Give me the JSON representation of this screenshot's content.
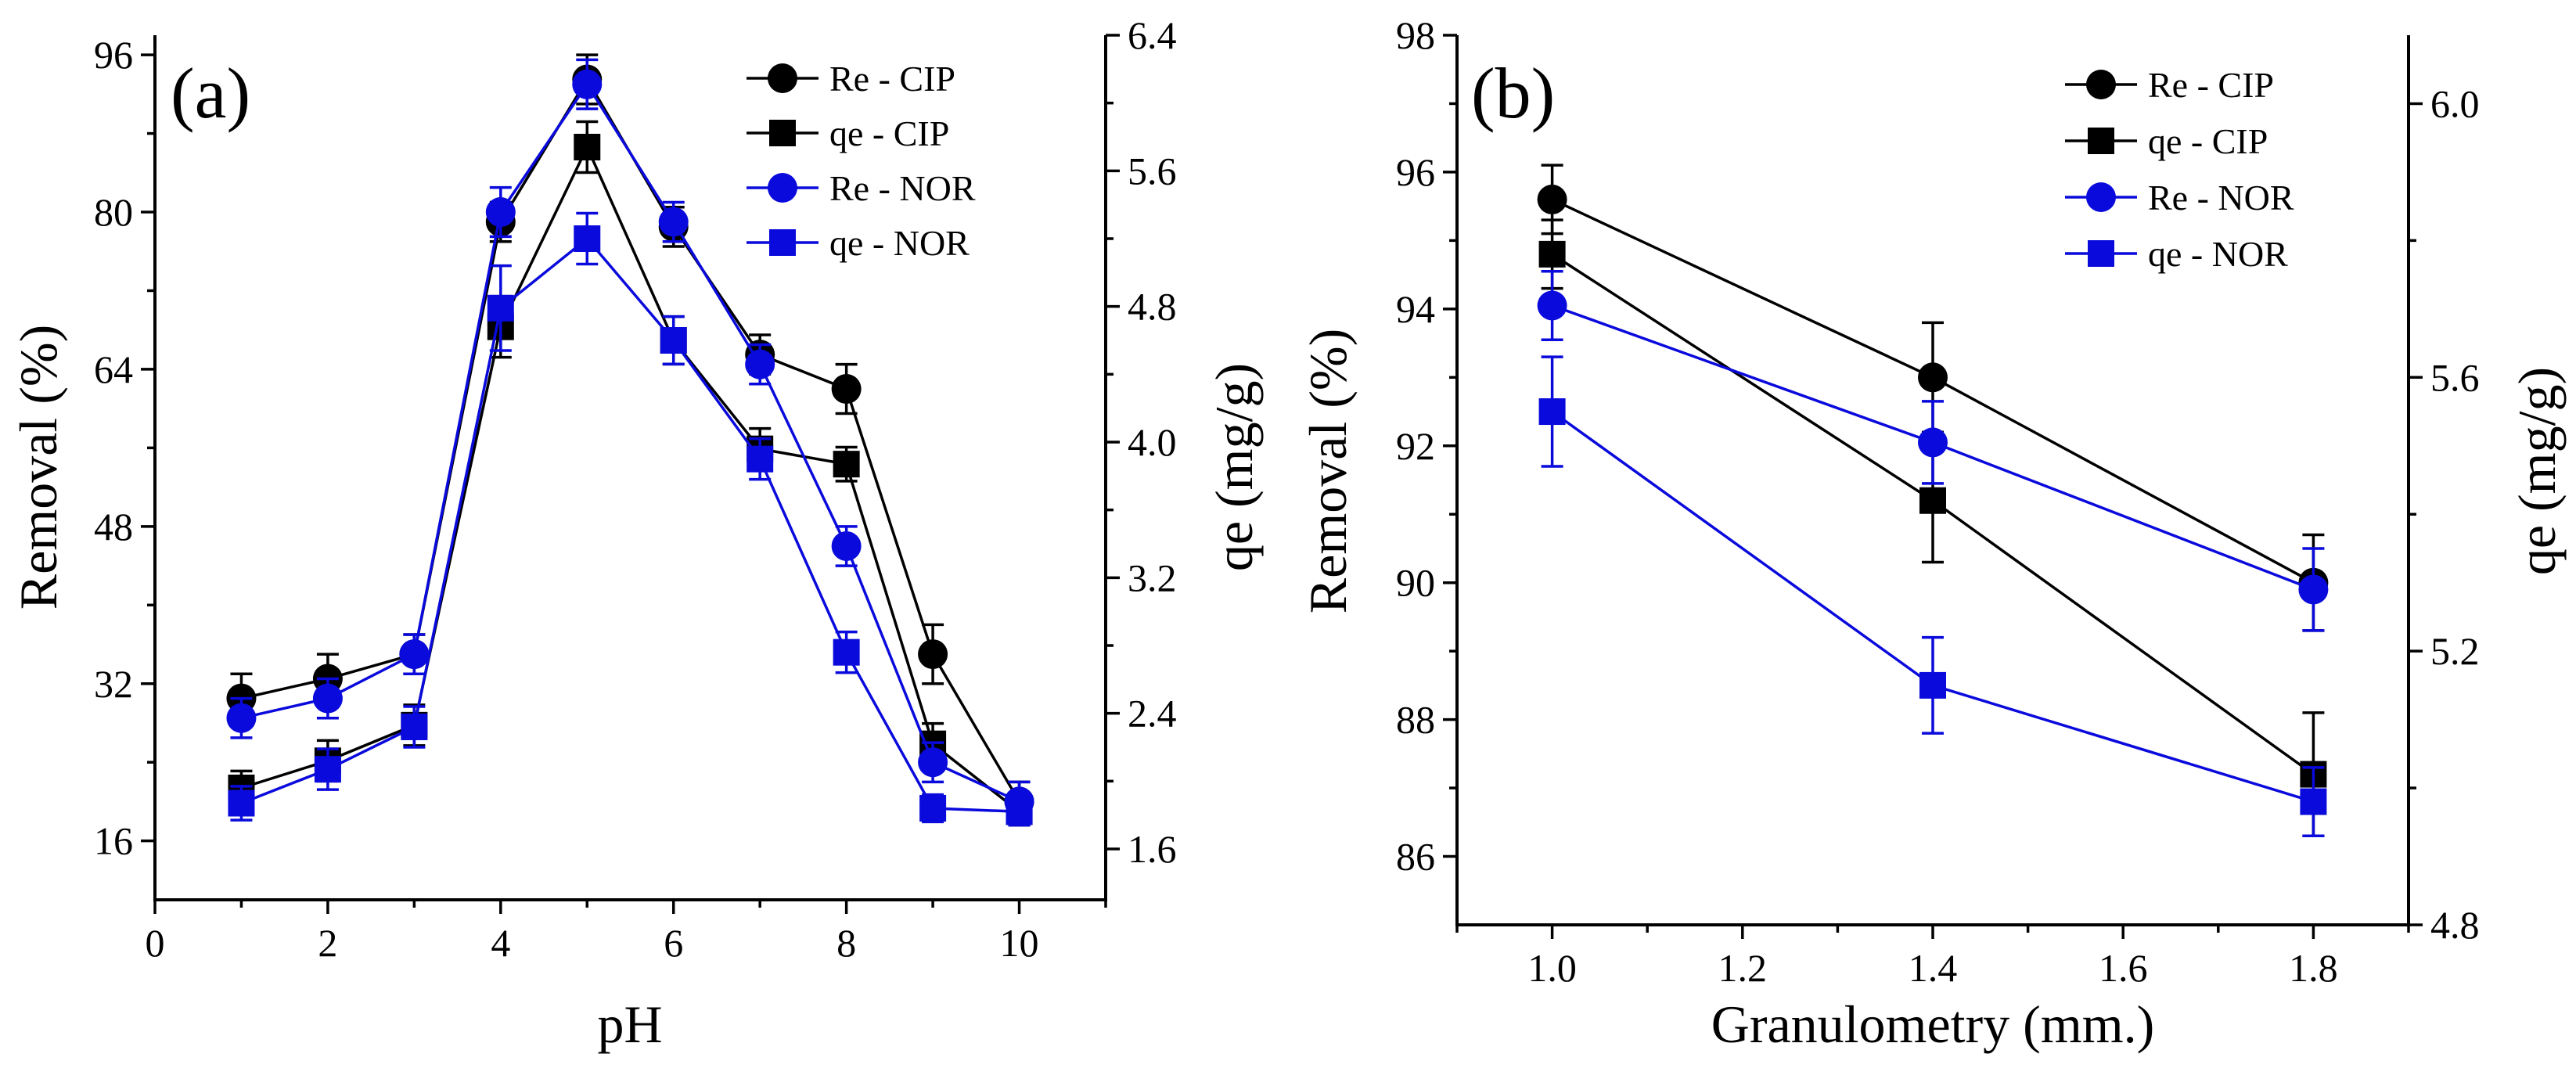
{
  "colors": {
    "cip": "#000000",
    "nor": "#0a0adc"
  },
  "chart_data": [
    {
      "panel_label": "(a)",
      "type": "line",
      "xlabel": "pH",
      "ylabel_left": "Removal (%)",
      "ylabel_right": "qe (mg/g)",
      "xlim": [
        0,
        11
      ],
      "ylim_left": [
        10,
        98
      ],
      "ylim_right": [
        1.3,
        6.4
      ],
      "x_ticks": [
        "0",
        "2",
        "4",
        "6",
        "8",
        "10"
      ],
      "y_left_ticks": [
        "16",
        "32",
        "48",
        "64",
        "80",
        "96"
      ],
      "y_right_ticks": [
        "1.6",
        "2.4",
        "3.2",
        "4.0",
        "4.8",
        "5.6",
        "6.4"
      ],
      "legend_position": "top-right",
      "x": [
        1,
        2,
        3,
        4,
        5,
        6,
        7,
        8,
        9,
        10
      ],
      "series": [
        {
          "name": "Re - CIP",
          "axis": "left",
          "marker": "circle",
          "color_key": "cip",
          "values": [
            30.5,
            32.5,
            35,
            79,
            93.5,
            78.5,
            65.5,
            62,
            35,
            20
          ],
          "errors": [
            2.5,
            2.5,
            2,
            2,
            2.5,
            2,
            2,
            2.5,
            3,
            2
          ]
        },
        {
          "name": "qe - CIP",
          "axis": "right",
          "marker": "square",
          "color_key": "cip",
          "values": [
            1.96,
            2.12,
            2.33,
            4.68,
            5.74,
            4.6,
            3.96,
            3.87,
            2.22,
            1.82
          ],
          "errors": [
            0.1,
            0.12,
            0.12,
            0.18,
            0.15,
            0.14,
            0.12,
            0.1,
            0.12,
            0.08
          ]
        },
        {
          "name": "Re - NOR",
          "axis": "left",
          "marker": "circle",
          "color_key": "nor",
          "values": [
            28.5,
            30.5,
            35,
            80,
            93,
            79,
            64.5,
            46,
            24,
            20
          ],
          "errors": [
            2,
            2,
            2,
            2.5,
            2.5,
            2,
            2,
            2,
            2,
            2
          ]
        },
        {
          "name": "qe - NOR",
          "axis": "right",
          "marker": "square",
          "color_key": "nor",
          "values": [
            1.87,
            2.07,
            2.32,
            4.79,
            5.2,
            4.6,
            3.9,
            2.76,
            1.84,
            1.82
          ],
          "errors": [
            0.1,
            0.12,
            0.12,
            0.25,
            0.15,
            0.14,
            0.12,
            0.12,
            0.08,
            0.08
          ]
        }
      ]
    },
    {
      "panel_label": "(b)",
      "type": "line",
      "xlabel": "Granulometry (mm.)",
      "ylabel_left": "Removal (%)",
      "ylabel_right": "qe (mg/g)",
      "xlim": [
        0.9,
        1.9
      ],
      "ylim_left": [
        85,
        98
      ],
      "ylim_right": [
        4.8,
        6.1
      ],
      "x_ticks": [
        "1.0",
        "1.2",
        "1.4",
        "1.6",
        "1.8"
      ],
      "y_left_ticks": [
        "86",
        "88",
        "90",
        "92",
        "94",
        "96",
        "98"
      ],
      "y_right_ticks": [
        "4.8",
        "5.2",
        "5.6",
        "6.0"
      ],
      "legend_position": "top-right",
      "x": [
        1.0,
        1.4,
        1.8
      ],
      "series": [
        {
          "name": "Re - CIP",
          "axis": "left",
          "marker": "circle",
          "color_key": "cip",
          "values": [
            95.6,
            93.0,
            90.0
          ],
          "errors": [
            0.5,
            0.8,
            0.7
          ]
        },
        {
          "name": "qe - CIP",
          "axis": "right",
          "marker": "square",
          "color_key": "cip",
          "values": [
            5.78,
            5.42,
            5.02
          ],
          "errors": [
            0.05,
            0.09,
            0.09
          ]
        },
        {
          "name": "Re - NOR",
          "axis": "left",
          "marker": "circle",
          "color_key": "nor",
          "values": [
            94.05,
            92.05,
            89.9
          ],
          "errors": [
            0.5,
            0.6,
            0.6
          ]
        },
        {
          "name": "qe - NOR",
          "axis": "right",
          "marker": "square",
          "color_key": "nor",
          "values": [
            5.55,
            5.15,
            4.98
          ],
          "errors": [
            0.08,
            0.07,
            0.05
          ]
        }
      ]
    }
  ]
}
